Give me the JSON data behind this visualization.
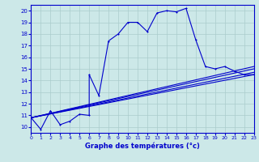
{
  "xlabel": "Graphe des températures (°c)",
  "bg_color": "#cce8e8",
  "grid_color": "#aacccc",
  "line_color": "#0000cc",
  "xlim": [
    0,
    23
  ],
  "ylim": [
    9.5,
    20.5
  ],
  "xticks": [
    0,
    1,
    2,
    3,
    4,
    5,
    6,
    7,
    8,
    9,
    10,
    11,
    12,
    13,
    14,
    15,
    16,
    17,
    18,
    19,
    20,
    21,
    22,
    23
  ],
  "yticks": [
    10,
    11,
    12,
    13,
    14,
    15,
    16,
    17,
    18,
    19,
    20
  ],
  "ytick_labels": [
    "10",
    "11",
    "12",
    "13",
    "14",
    "15",
    "16",
    "17",
    "18",
    "19",
    "20"
  ],
  "xtick_labels": [
    "0",
    "1",
    "2",
    "3",
    "4",
    "5",
    "6",
    "7",
    "8",
    "9",
    "10",
    "11",
    "12",
    "13",
    "14",
    "15",
    "16",
    "17",
    "18",
    "19",
    "20",
    "21",
    "22",
    "23"
  ],
  "main_series": [
    [
      0,
      10.8
    ],
    [
      1,
      9.8
    ],
    [
      2,
      11.4
    ],
    [
      3,
      10.2
    ],
    [
      4,
      10.5
    ],
    [
      5,
      11.1
    ],
    [
      6,
      11.0
    ],
    [
      6,
      14.5
    ],
    [
      7,
      12.7
    ],
    [
      8,
      17.4
    ],
    [
      9,
      18.0
    ],
    [
      10,
      19.0
    ],
    [
      11,
      19.0
    ],
    [
      12,
      18.2
    ],
    [
      13,
      19.8
    ],
    [
      14,
      20.0
    ],
    [
      15,
      19.9
    ],
    [
      16,
      20.2
    ],
    [
      17,
      17.5
    ],
    [
      18,
      15.2
    ],
    [
      19,
      15.0
    ],
    [
      20,
      15.2
    ],
    [
      21,
      14.8
    ],
    [
      22,
      14.5
    ],
    [
      23,
      14.5
    ]
  ],
  "ref_lines": [
    [
      [
        0,
        10.8
      ],
      [
        23,
        14.5
      ]
    ],
    [
      [
        0,
        10.8
      ],
      [
        23,
        14.7
      ]
    ],
    [
      [
        0,
        10.8
      ],
      [
        23,
        15.0
      ]
    ],
    [
      [
        0,
        10.8
      ],
      [
        23,
        15.2
      ]
    ]
  ],
  "xlabel_fontsize": 6,
  "tick_fontsize": 4.5,
  "line_width": 0.8,
  "marker_size": 2.0
}
